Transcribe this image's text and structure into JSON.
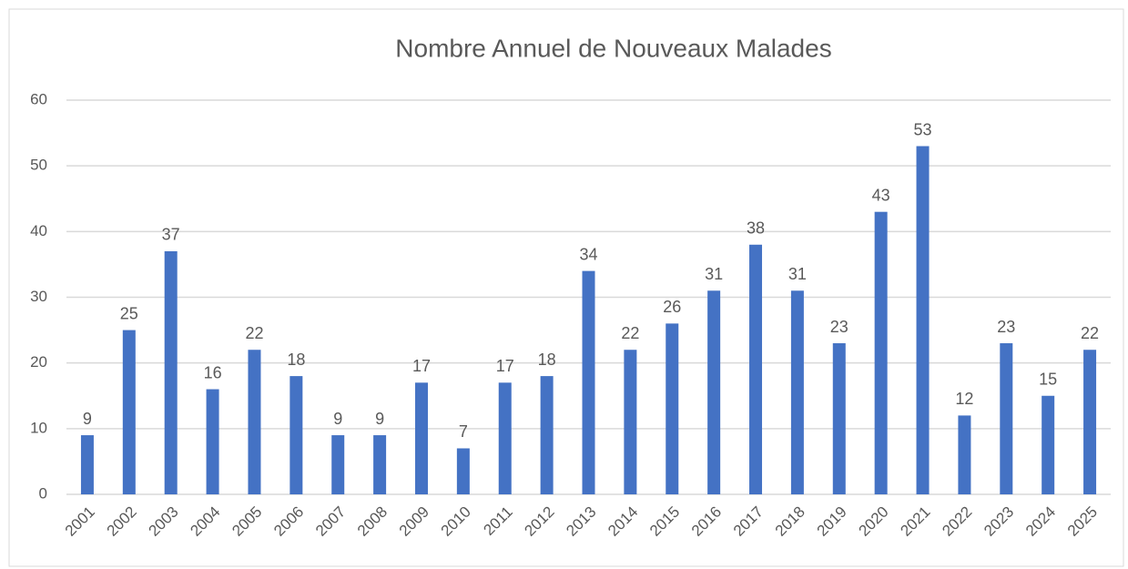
{
  "chart_data": {
    "type": "bar",
    "title": "Nombre Annuel de Nouveaux Malades",
    "categories": [
      "2001",
      "2002",
      "2003",
      "2004",
      "2005",
      "2006",
      "2007",
      "2008",
      "2009",
      "2010",
      "2011",
      "2012",
      "2013",
      "2014",
      "2015",
      "2016",
      "2017",
      "2018",
      "2019",
      "2020",
      "2021",
      "2022",
      "2023",
      "2024",
      "2025"
    ],
    "values": [
      9,
      25,
      37,
      16,
      22,
      18,
      9,
      9,
      17,
      7,
      17,
      18,
      34,
      22,
      26,
      31,
      38,
      31,
      23,
      43,
      53,
      12,
      23,
      15,
      22
    ],
    "color": "#4472c4",
    "ylim": [
      0,
      60
    ],
    "yticks": [
      0,
      10,
      20,
      30,
      40,
      50,
      60
    ],
    "grid": true
  }
}
